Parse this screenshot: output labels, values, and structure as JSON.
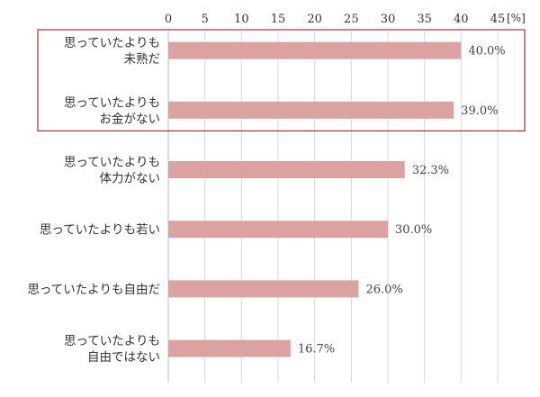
{
  "chart_data": {
    "type": "bar",
    "orientation": "horizontal",
    "categories": [
      [
        "思っていたよりも",
        "未熟だ"
      ],
      [
        "思っていたよりも",
        "お金がない"
      ],
      [
        "思っていたよりも",
        "体力がない"
      ],
      [
        "思っていたよりも若い"
      ],
      [
        "思っていたよりも自由だ"
      ],
      [
        "思っていたよりも",
        "自由ではない"
      ]
    ],
    "values": [
      40.0,
      39.0,
      32.3,
      30.0,
      26.0,
      16.7
    ],
    "value_labels": [
      "40.0%",
      "39.0%",
      "32.3%",
      "30.0%",
      "26.0%",
      "16.7%"
    ],
    "xlim": [
      0,
      45
    ],
    "xticks": [
      0,
      5,
      10,
      15,
      20,
      25,
      30,
      35,
      40,
      45
    ],
    "unit": "[%]",
    "grid": true,
    "axis_position": "top",
    "highlight": {
      "categories": [
        0,
        1
      ],
      "style": "red outline box"
    },
    "colors": {
      "bar": "#dba2a2",
      "highlight_border": "#a83232",
      "grid": "#d9d9d9",
      "axis": "#bfbfbf"
    }
  }
}
